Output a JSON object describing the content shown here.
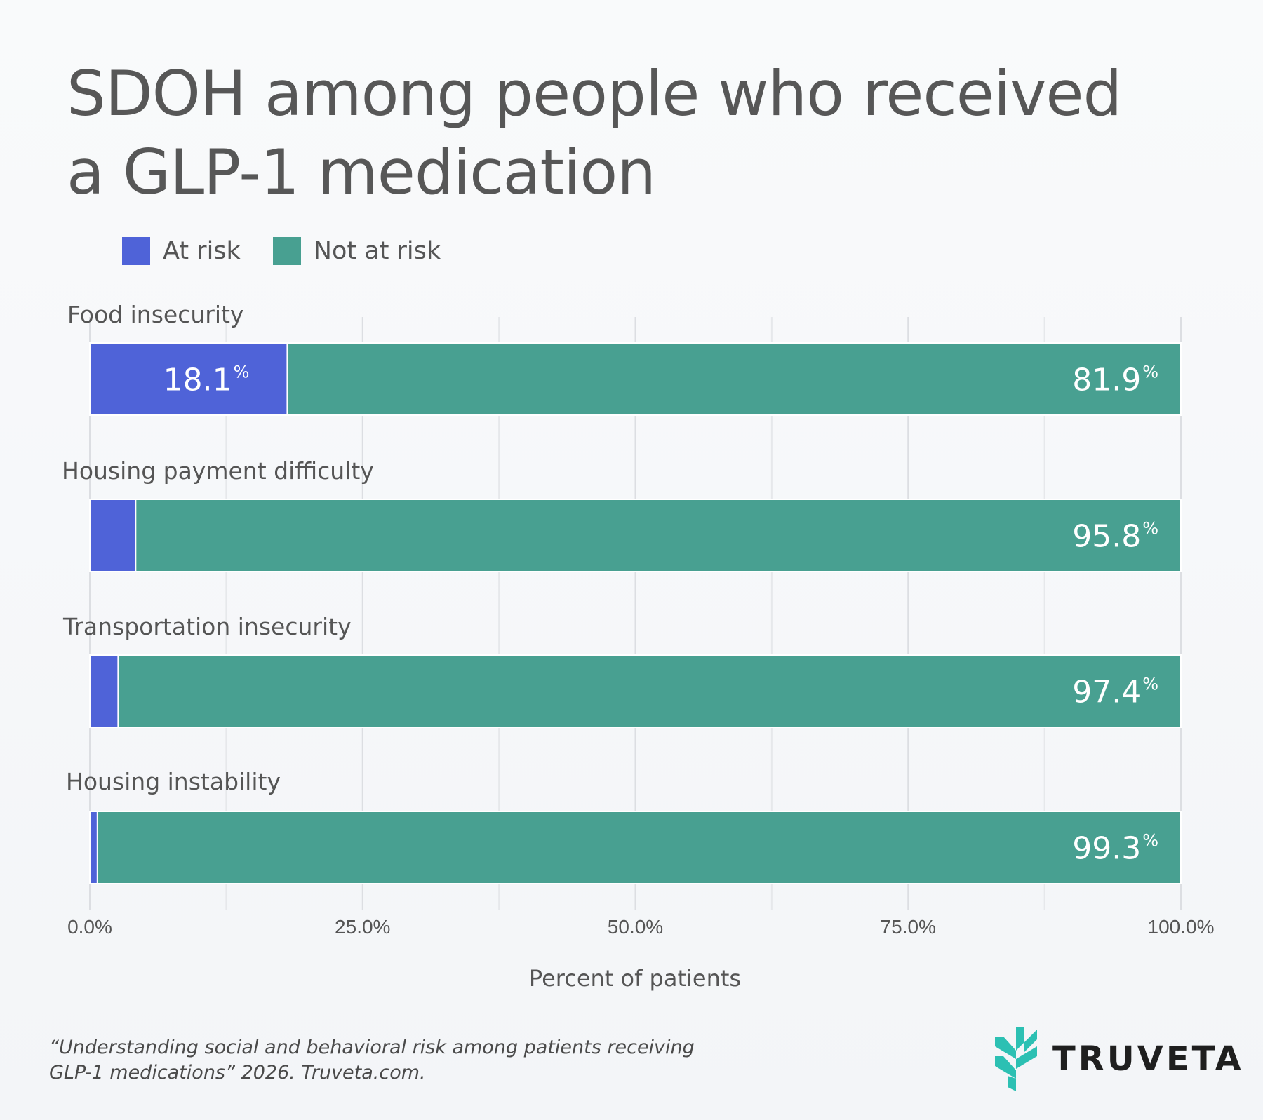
{
  "title_lines": [
    "SDOH among people who received",
    "a GLP-1 medication"
  ],
  "legend": [
    {
      "label": "At risk",
      "color": "#4f63d8"
    },
    {
      "label": "Not at risk",
      "color": "#48a091"
    }
  ],
  "chart_data": {
    "type": "bar",
    "orientation": "horizontal",
    "stacked": true,
    "title": "SDOH among people who received a GLP-1 medication",
    "categories": [
      "Food insecurity",
      "Housing payment difficulty",
      "Transportation insecurity",
      "Housing instability"
    ],
    "series": [
      {
        "name": "At risk",
        "color": "#4f63d8",
        "values": [
          18.1,
          4.2,
          2.6,
          0.7
        ]
      },
      {
        "name": "Not at risk",
        "color": "#48a091",
        "values": [
          81.9,
          95.8,
          97.4,
          99.3
        ]
      }
    ],
    "xlabel": "Percent of patients",
    "ylabel": "",
    "xlim": [
      0,
      100
    ],
    "x_ticks": [
      0,
      25,
      50,
      75,
      100
    ],
    "x_tick_labels": [
      "0.0%",
      "25.0%",
      "50.0%",
      "75.0%",
      "100.0%"
    ],
    "value_labels": {
      "At risk": [
        "18.1",
        "4.2",
        "2.6",
        "0.7"
      ],
      "Not at risk": [
        "81.9",
        "95.8",
        "97.4",
        "99.3"
      ]
    },
    "value_suffix": "%",
    "grid": true,
    "legend_position": "top-left"
  },
  "source_lines": [
    "“Understanding social and behavioral risk among patients receiving",
    "GLP-1 medications” 2026. Truveta.com."
  ],
  "brand": {
    "name": "TRUVETA",
    "logo_icon": "truveta-logo-icon",
    "logo_color": "#2cc0b3"
  }
}
